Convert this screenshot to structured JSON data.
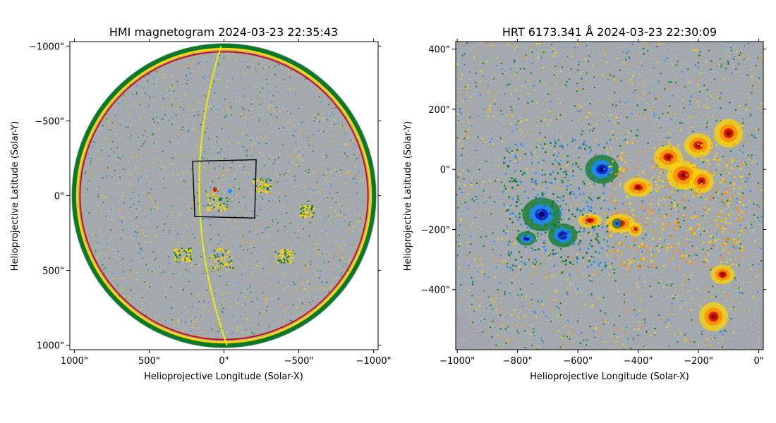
{
  "colors": {
    "disk_gray": "#9aa0a5",
    "offdisk_gray": "#9b9ba8",
    "positive": [
      "#ffd400",
      "#ff8c00",
      "#d81b00",
      "#7a0000"
    ],
    "negative": [
      "#0a7a2a",
      "#1e88ff",
      "#1525c8",
      "#0b0b6a"
    ],
    "grid_yellow": "#f0ee00",
    "limb_red": "#cc1010",
    "box_black": "#000000"
  },
  "chart_data": [
    {
      "type": "heatmap",
      "title": "HMI magnetogram 2024-03-23 22:35:43",
      "xlabel": "Helioprojective Longitude (Solar-X)",
      "ylabel": "Helioprojective Latitude (Solar-Y)",
      "xlim": [
        1030,
        -1030
      ],
      "ylim": [
        -1030,
        1030
      ],
      "x_ticks": [
        1000,
        500,
        0,
        -500,
        -1000
      ],
      "y_ticks": [
        -1000,
        -500,
        0,
        500,
        1000
      ],
      "x_tick_labels": [
        "1000\"",
        "500\"",
        "0\"",
        "−500\"",
        "−1000\""
      ],
      "y_tick_labels": [
        "−1000\"",
        "−500\"",
        "0\"",
        "500\"",
        "1000\""
      ],
      "disk_radius": 1000,
      "fov_box": [
        [
          210,
          -230
        ],
        [
          -215,
          -240
        ],
        [
          -205,
          150
        ],
        [
          195,
          140
        ]
      ]
    },
    {
      "type": "heatmap",
      "title": "HRT 6173.341 Å 2024-03-23 22:30:09",
      "xlabel": "Helioprojective Longitude (Solar-X)",
      "ylabel": "Helioprojective Latitude (Solar-Y)",
      "xlim": [
        -1005,
        15
      ],
      "ylim": [
        -600,
        425
      ],
      "x_ticks": [
        -1000,
        -800,
        -600,
        -400,
        -200,
        0
      ],
      "y_ticks": [
        400,
        200,
        0,
        -200,
        -400
      ],
      "x_tick_labels": [
        "−1000\"",
        "−800\"",
        "−600\"",
        "−400\"",
        "−200\"",
        "0\""
      ],
      "y_tick_labels": [
        "400\"",
        "200\"",
        "0\"",
        "−200\"",
        "−400\""
      ]
    }
  ]
}
